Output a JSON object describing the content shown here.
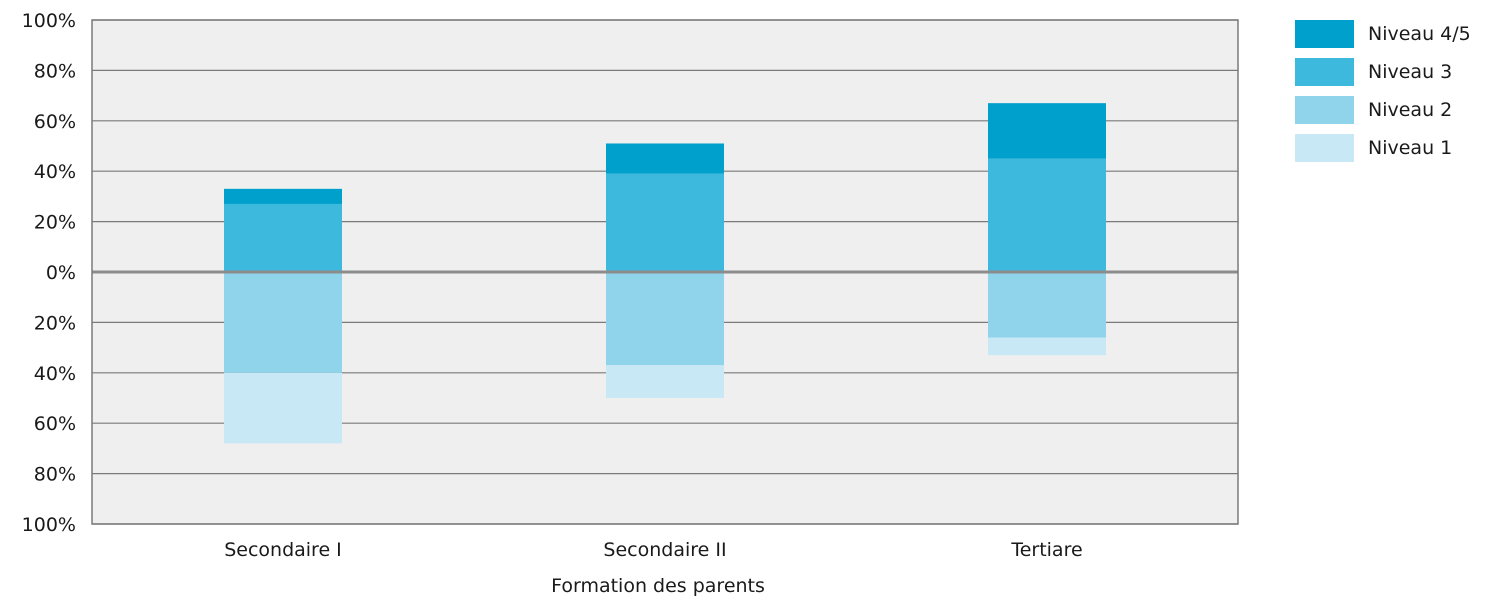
{
  "chart_data": {
    "type": "bar",
    "stacked": "diverging",
    "categories": [
      "Secondaire I",
      "Secondaire II",
      "Tertiare"
    ],
    "xlabel": "Formation des parents",
    "ylabel": "",
    "ylim": [
      -100,
      100
    ],
    "yticks": [
      100,
      80,
      60,
      40,
      20,
      0,
      -20,
      -40,
      -60,
      -80,
      -100
    ],
    "ytick_labels": [
      "100%",
      "80%",
      "60%",
      "40%",
      "20%",
      "0%",
      "20%",
      "40%",
      "60%",
      "80%",
      "100%"
    ],
    "grid": true,
    "legend_position": "right",
    "series": [
      {
        "name": "Niveau 4/5",
        "color": "#00a0cc",
        "values": [
          6,
          12,
          22
        ]
      },
      {
        "name": "Niveau 3",
        "color": "#3db9dd",
        "values": [
          27,
          39,
          45
        ]
      },
      {
        "name": "Niveau 2",
        "color": "#90d4ec",
        "values": [
          -40,
          -37,
          -26
        ]
      },
      {
        "name": "Niveau 1",
        "color": "#c8e8f6",
        "values": [
          -28,
          -13,
          -7
        ]
      }
    ],
    "colors": {
      "plot_background": "#efefef",
      "gridline": "#7a7a7a",
      "zero_line": "#8c8c8c"
    }
  }
}
